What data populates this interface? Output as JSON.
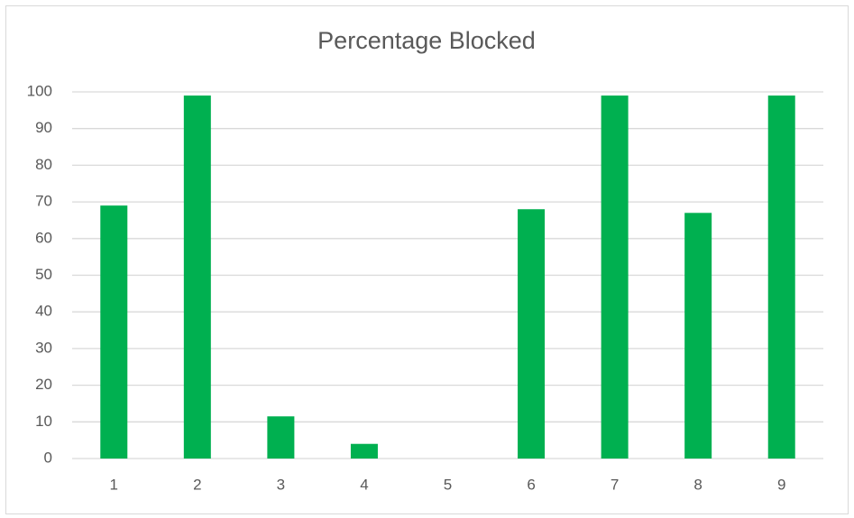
{
  "chart_data": {
    "type": "bar",
    "title": "Percentage Blocked",
    "categories": [
      "1",
      "2",
      "3",
      "4",
      "5",
      "6",
      "7",
      "8",
      "9"
    ],
    "values": [
      69,
      99,
      11.5,
      4,
      0,
      68,
      99,
      67,
      99
    ],
    "color": "#00b050",
    "ylim": [
      0,
      100
    ],
    "yticks": [
      0,
      10,
      20,
      30,
      40,
      50,
      60,
      70,
      80,
      90,
      100
    ],
    "grid": true
  }
}
